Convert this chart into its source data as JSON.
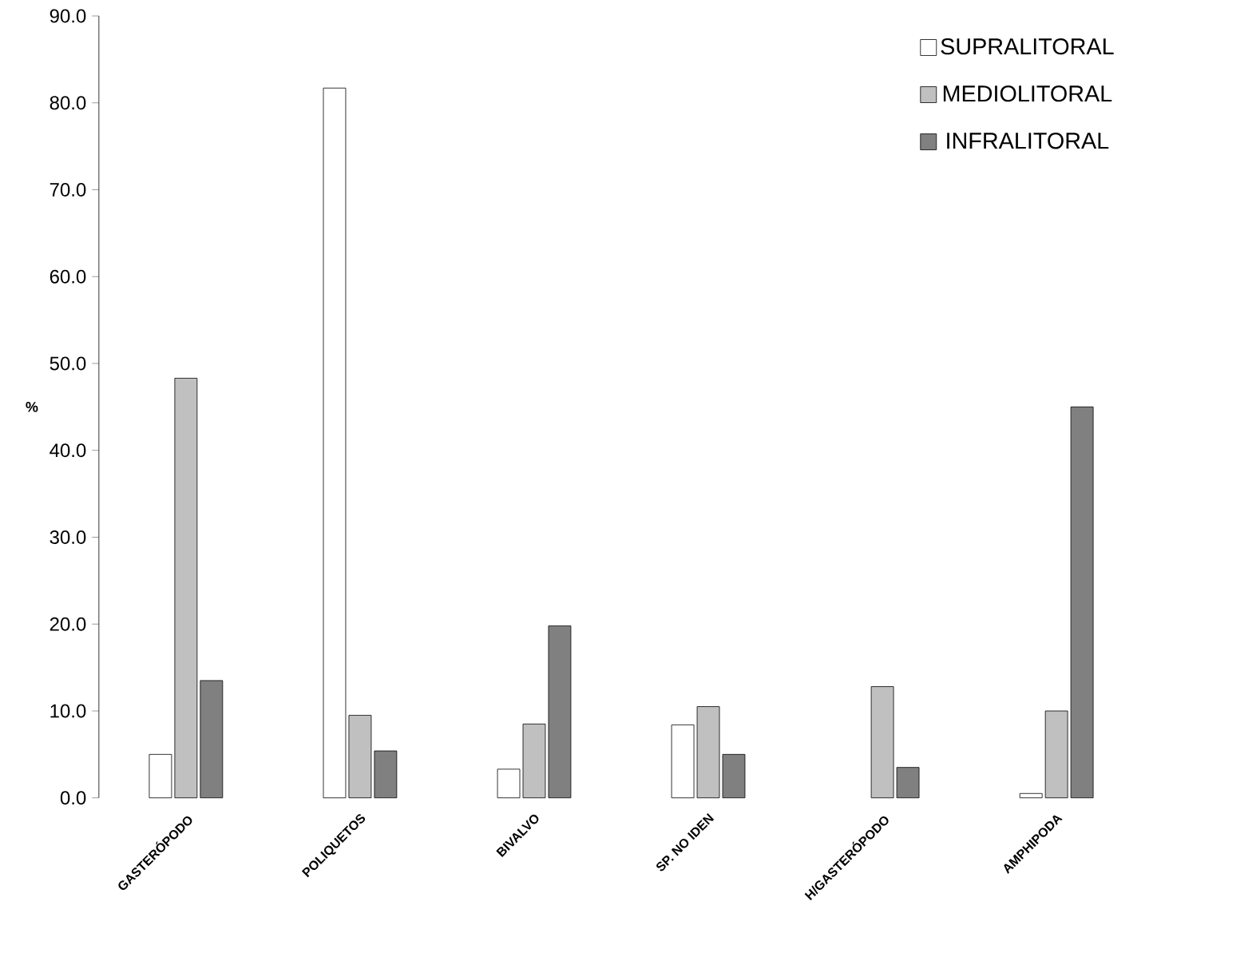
{
  "chart_data": {
    "type": "bar",
    "ylabel": "%",
    "categories": [
      "GASTERÓPODO",
      "POLIQUETOS",
      "BIVALVO",
      "SP. NO IDEN",
      "H/GASTERÓPODO",
      "AMPHIPODA"
    ],
    "series": [
      {
        "name": "SUPRALITORAL",
        "color": "#ffffff",
        "values": [
          5.0,
          81.7,
          3.3,
          8.4,
          null,
          0.5
        ]
      },
      {
        "name": "MEDIOLITORAL",
        "color": "#c0c0c0",
        "values": [
          48.3,
          9.5,
          8.5,
          10.5,
          12.8,
          10.0
        ]
      },
      {
        "name": "INFRALITORAL",
        "color": "#808080",
        "values": [
          13.5,
          5.4,
          19.8,
          5.0,
          3.5,
          45.0
        ]
      }
    ],
    "ylim": [
      0,
      90
    ],
    "yticks": [
      {
        "value": 0,
        "label": "0.0"
      },
      {
        "value": 10,
        "label": "10.0"
      },
      {
        "value": 20,
        "label": "20.0"
      },
      {
        "value": 30,
        "label": "30.0"
      },
      {
        "value": 40,
        "label": "40.0"
      },
      {
        "value": 50,
        "label": "50.0"
      },
      {
        "value": 60,
        "label": "60.0"
      },
      {
        "value": 70,
        "label": "70.0"
      },
      {
        "value": 80,
        "label": "80.0"
      },
      {
        "value": 90,
        "label": "90.0"
      }
    ],
    "legend": "top right",
    "grid": false
  }
}
